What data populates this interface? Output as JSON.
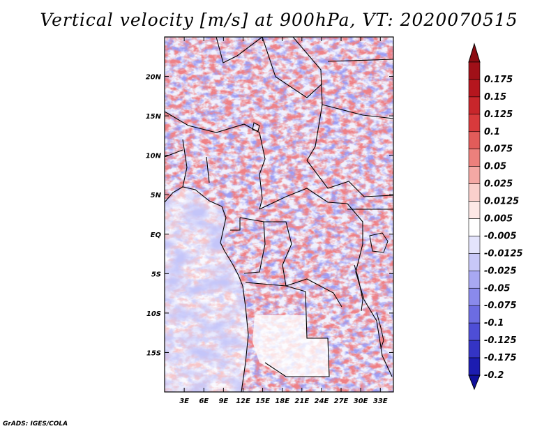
{
  "title": "Vertical velocity [m/s] at 900hPa, VT: 2020070515",
  "credit": "GrADS: IGES/COLA",
  "chart_data": {
    "type": "heatmap",
    "title": "Vertical velocity [m/s] at 900hPa, VT: 2020070515",
    "xlabel": "",
    "ylabel": "",
    "xlim": [
      0,
      35
    ],
    "ylim": [
      -20,
      25
    ],
    "x_ticks": [
      {
        "value": 3,
        "label": "3E"
      },
      {
        "value": 6,
        "label": "6E"
      },
      {
        "value": 9,
        "label": "9E"
      },
      {
        "value": 12,
        "label": "12E"
      },
      {
        "value": 15,
        "label": "15E"
      },
      {
        "value": 18,
        "label": "18E"
      },
      {
        "value": 21,
        "label": "21E"
      },
      {
        "value": 24,
        "label": "24E"
      },
      {
        "value": 27,
        "label": "27E"
      },
      {
        "value": 30,
        "label": "30E"
      },
      {
        "value": 33,
        "label": "33E"
      }
    ],
    "y_ticks": [
      {
        "value": 20,
        "label": "20N"
      },
      {
        "value": 15,
        "label": "15N"
      },
      {
        "value": 10,
        "label": "10N"
      },
      {
        "value": 5,
        "label": "5N"
      },
      {
        "value": 0,
        "label": "EQ"
      },
      {
        "value": -5,
        "label": "5S"
      },
      {
        "value": -10,
        "label": "10S"
      },
      {
        "value": -15,
        "label": "15S"
      }
    ],
    "colorbar": {
      "levels": [
        {
          "label": "0.175",
          "color": "#a01018"
        },
        {
          "label": "0.15",
          "color": "#b5161e"
        },
        {
          "label": "0.125",
          "color": "#c8262b"
        },
        {
          "label": "0.1",
          "color": "#d83a3c"
        },
        {
          "label": "0.075",
          "color": "#e25c5a"
        },
        {
          "label": "0.05",
          "color": "#ec807c"
        },
        {
          "label": "0.025",
          "color": "#f4a8a4"
        },
        {
          "label": "0.0125",
          "color": "#fad0cc"
        },
        {
          "label": "0.005",
          "color": "#fde8e6"
        },
        {
          "label": "-0.005",
          "color": "#ffffff"
        },
        {
          "label": "-0.0125",
          "color": "#e4e4fc"
        },
        {
          "label": "-0.025",
          "color": "#c8c8f8"
        },
        {
          "label": "-0.05",
          "color": "#a8a8f2"
        },
        {
          "label": "-0.075",
          "color": "#8a8aec"
        },
        {
          "label": "-0.1",
          "color": "#6c6ce2"
        },
        {
          "label": "-0.125",
          "color": "#4e4ed6"
        },
        {
          "label": "-0.175",
          "color": "#3434c4"
        },
        {
          "label": "-0.2",
          "color": "#1c1cb0"
        }
      ],
      "over_color": "#8c0c12",
      "under_color": "#10109c"
    }
  }
}
